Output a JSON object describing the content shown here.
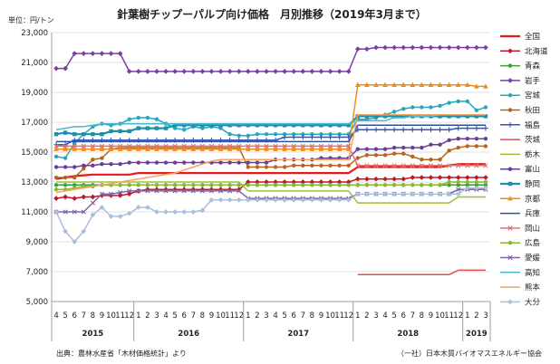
{
  "chart_data": {
    "type": "line",
    "title": "針葉樹チップーパルプ向け価格　月別推移（2019年3月まで）",
    "unit_label": "単位：円/トン",
    "source_note": "出典：農林水産省「木材価格統計」より",
    "credit": "（一社）日本木質バイオマスエネルギー協会",
    "ylim": [
      5000,
      23000
    ],
    "yticks": [
      "5,000",
      "7,000",
      "9,000",
      "11,000",
      "13,000",
      "15,000",
      "17,000",
      "19,000",
      "21,000",
      "23,000"
    ],
    "month_labels": [
      "4",
      "5",
      "6",
      "7",
      "8",
      "9",
      "10",
      "11",
      "12",
      "1",
      "2",
      "3",
      "4",
      "5",
      "6",
      "7",
      "8",
      "9",
      "10",
      "11",
      "12",
      "1",
      "2",
      "3",
      "4",
      "5",
      "6",
      "7",
      "8",
      "9",
      "10",
      "11",
      "12",
      "1",
      "2",
      "3",
      "4",
      "5",
      "6",
      "7",
      "8",
      "9",
      "10",
      "11",
      "12",
      "1",
      "2",
      "3"
    ],
    "years": [
      {
        "label": "2015",
        "start": 0,
        "end": 9
      },
      {
        "label": "2016",
        "start": 9,
        "end": 21
      },
      {
        "label": "2017",
        "start": 21,
        "end": 33
      },
      {
        "label": "2018",
        "start": 33,
        "end": 45
      },
      {
        "label": "2019",
        "start": 45,
        "end": 48
      }
    ],
    "series": [
      {
        "name": "全国",
        "color": "#e31a1c",
        "marker": "none",
        "width": 2.2,
        "values": [
          13200,
          13300,
          13400,
          13450,
          13500,
          13500,
          13500,
          13500,
          13500,
          13600,
          13600,
          13600,
          13600,
          13600,
          13600,
          13600,
          13600,
          13600,
          13600,
          13600,
          13600,
          13600,
          13600,
          13600,
          13600,
          13600,
          13600,
          13600,
          13600,
          13600,
          13600,
          13600,
          13600,
          14000,
          14000,
          14000,
          14000,
          14000,
          14000,
          14000,
          14000,
          14000,
          14000,
          14100,
          14200,
          14200,
          14200,
          14200
        ]
      },
      {
        "name": "北海道",
        "color": "#c0182a",
        "marker": "diamond",
        "width": 1.5,
        "values": [
          11900,
          12000,
          11900,
          12000,
          12000,
          12100,
          12100,
          12100,
          12200,
          12400,
          12500,
          12500,
          12500,
          12500,
          12500,
          12500,
          12500,
          12500,
          12500,
          12500,
          12500,
          13000,
          13000,
          13000,
          13000,
          13000,
          13000,
          13000,
          13000,
          13000,
          13000,
          13000,
          13000,
          13200,
          13200,
          13200,
          13200,
          13200,
          13200,
          13300,
          13300,
          13300,
          13300,
          13300,
          13300,
          13300,
          13300,
          13300
        ]
      },
      {
        "name": "青森",
        "color": "#3a9e3a",
        "marker": "circle",
        "width": 1.5,
        "values": [
          12800,
          12800,
          12800,
          12800,
          12800,
          12800,
          12800,
          12800,
          12800,
          12800,
          12800,
          12800,
          12800,
          12800,
          12800,
          12800,
          12800,
          12800,
          12800,
          12800,
          12800,
          12800,
          12800,
          12800,
          12800,
          12800,
          12800,
          12800,
          12800,
          12800,
          12800,
          12800,
          12800,
          12800,
          12800,
          12800,
          12800,
          12800,
          12800,
          12800,
          12800,
          12800,
          12800,
          12800,
          12800,
          12800,
          12800,
          12800
        ]
      },
      {
        "name": "岩手",
        "color": "#7b3fa0",
        "marker": "diamond",
        "width": 1.5,
        "values": [
          20600,
          20600,
          21600,
          21600,
          21600,
          21600,
          21600,
          21600,
          20400,
          20400,
          20400,
          20400,
          20400,
          20400,
          20400,
          20400,
          20400,
          20400,
          20400,
          20400,
          20400,
          20400,
          20400,
          20400,
          20400,
          20400,
          20400,
          20400,
          20400,
          20400,
          20400,
          20400,
          20400,
          21900,
          21900,
          22000,
          22000,
          22000,
          22000,
          22000,
          22000,
          22000,
          22000,
          22000,
          22000,
          22000,
          22000,
          22000
        ]
      },
      {
        "name": "宮城",
        "color": "#27a6bd",
        "marker": "circle",
        "width": 1.5,
        "values": [
          14700,
          14600,
          15600,
          16200,
          16700,
          16900,
          16800,
          16900,
          17200,
          17300,
          17300,
          17200,
          16900,
          16600,
          16500,
          16700,
          16600,
          16700,
          16600,
          16200,
          16100,
          16100,
          16200,
          16200,
          16200,
          16200,
          16200,
          16200,
          16200,
          16200,
          16200,
          16200,
          16200,
          17200,
          17200,
          17300,
          17500,
          17700,
          17900,
          18000,
          18000,
          18000,
          18100,
          18300,
          18400,
          18400,
          17800,
          18000
        ]
      },
      {
        "name": "秋田",
        "color": "#b5651d",
        "marker": "circle",
        "width": 1.5,
        "values": [
          13300,
          13300,
          13300,
          13900,
          14500,
          14600,
          15200,
          15300,
          15300,
          15300,
          15300,
          15300,
          15300,
          15300,
          15300,
          15300,
          15300,
          15300,
          15300,
          15300,
          15300,
          14000,
          14000,
          14000,
          14000,
          14000,
          14100,
          14100,
          14100,
          14100,
          14100,
          14100,
          14100,
          14600,
          14800,
          14800,
          14800,
          14900,
          14900,
          14700,
          14500,
          14500,
          14500,
          15100,
          15300,
          15400,
          15400,
          15400
        ]
      },
      {
        "name": "福島",
        "color": "#3355bb",
        "marker": "plus",
        "width": 1.5,
        "values": [
          15500,
          15500,
          15800,
          15800,
          15800,
          15800,
          15800,
          15800,
          15800,
          15800,
          15800,
          15800,
          15800,
          15800,
          15800,
          15800,
          15800,
          15800,
          15800,
          15800,
          15800,
          15800,
          15800,
          15800,
          15800,
          16000,
          16000,
          16000,
          16000,
          16000,
          16000,
          16000,
          16000,
          16500,
          16500,
          16500,
          16500,
          16500,
          16500,
          16500,
          16500,
          16500,
          16500,
          16500,
          16600,
          16600,
          16600,
          16600
        ]
      },
      {
        "name": "茨城",
        "color": "#d9534f",
        "marker": "none",
        "width": 1.5,
        "values": [
          null,
          null,
          null,
          null,
          null,
          null,
          null,
          null,
          null,
          null,
          null,
          null,
          null,
          null,
          null,
          null,
          null,
          null,
          null,
          null,
          null,
          null,
          null,
          null,
          null,
          null,
          null,
          null,
          null,
          null,
          null,
          null,
          null,
          6800,
          6800,
          6800,
          6800,
          6800,
          6800,
          6800,
          6800,
          6800,
          6800,
          6800,
          7100,
          7100,
          7100,
          7100
        ]
      },
      {
        "name": "栃木",
        "color": "#9cc13c",
        "marker": "none",
        "width": 1.5,
        "values": [
          13000,
          13000,
          13000,
          13000,
          13000,
          13000,
          13000,
          13000,
          13000,
          13000,
          13000,
          13000,
          13000,
          13000,
          13000,
          13000,
          13000,
          13000,
          13000,
          13000,
          13000,
          12400,
          12400,
          12400,
          12400,
          12400,
          12400,
          12400,
          12400,
          12400,
          12400,
          12400,
          12400,
          11600,
          11600,
          11600,
          11600,
          11600,
          11600,
          11600,
          11600,
          11600,
          11600,
          11600,
          12000,
          12000,
          12000,
          12000
        ]
      },
      {
        "name": "富山",
        "color": "#6a3d9a",
        "marker": "circle",
        "width": 1.5,
        "values": [
          14000,
          14000,
          14000,
          14100,
          14100,
          14200,
          14200,
          14200,
          14300,
          14300,
          14300,
          14300,
          14300,
          14300,
          14300,
          14300,
          14300,
          14300,
          14300,
          14300,
          14300,
          14300,
          14300,
          14300,
          14500,
          14500,
          14500,
          14500,
          14500,
          14600,
          14600,
          14600,
          14600,
          15200,
          15200,
          15200,
          15200,
          15300,
          15300,
          15300,
          15300,
          15500,
          15500,
          15800,
          15900,
          15900,
          15900,
          15900
        ]
      },
      {
        "name": "静岡",
        "color": "#1f8fa6",
        "marker": "square",
        "width": 2.2,
        "values": [
          16200,
          16300,
          16200,
          16200,
          16200,
          16200,
          16400,
          16400,
          16400,
          16600,
          16600,
          16600,
          16600,
          16800,
          16800,
          16800,
          16800,
          16800,
          16800,
          16800,
          16800,
          16800,
          16800,
          16800,
          16800,
          16800,
          16800,
          16800,
          16800,
          16800,
          16800,
          16800,
          16800,
          17400,
          17400,
          17400,
          17400,
          17400,
          17400,
          17400,
          17400,
          17400,
          17400,
          17400,
          17400,
          17400,
          17400,
          17400
        ]
      },
      {
        "name": "京都",
        "color": "#f08c1e",
        "marker": "triangle",
        "width": 1.5,
        "values": [
          15200,
          15200,
          15200,
          15200,
          15200,
          15200,
          15200,
          15200,
          15200,
          15200,
          15200,
          15200,
          15200,
          15200,
          15200,
          15200,
          15200,
          15200,
          15200,
          15200,
          15200,
          15200,
          15200,
          15200,
          15200,
          15200,
          15200,
          15200,
          15200,
          15200,
          15200,
          15200,
          15200,
          19500,
          19500,
          19500,
          19500,
          19500,
          19500,
          19500,
          19500,
          19500,
          19500,
          19500,
          19500,
          19500,
          19400,
          19400
        ]
      },
      {
        "name": "兵庫",
        "color": "#2f4f9f",
        "marker": "none",
        "width": 1.5,
        "values": [
          15700,
          15700,
          15700,
          15700,
          15700,
          15700,
          15700,
          15700,
          15700,
          15700,
          15700,
          15700,
          15700,
          15700,
          15700,
          15700,
          15700,
          15700,
          15700,
          15700,
          15700,
          15700,
          15700,
          15700,
          15700,
          15700,
          15700,
          15700,
          15700,
          15700,
          15700,
          15700,
          15700,
          16800,
          16800,
          16800,
          16800,
          16800,
          16800,
          16800,
          16800,
          16800,
          16800,
          16800,
          16800,
          16800,
          16800,
          16800
        ]
      },
      {
        "name": "岡山",
        "color": "#e07070",
        "marker": "cross",
        "width": 1.5,
        "values": [
          15400,
          15400,
          15400,
          15400,
          15400,
          15400,
          15400,
          15400,
          15400,
          15400,
          15400,
          15400,
          15400,
          15400,
          15400,
          15400,
          15400,
          15400,
          15400,
          15400,
          15400,
          15400,
          15400,
          15400,
          15400,
          15400,
          15400,
          15400,
          15400,
          15400,
          15400,
          15400,
          15400,
          14100,
          14100,
          14100,
          14100,
          14100,
          14100,
          14100,
          14100,
          14100,
          14100,
          14100,
          14100,
          14100,
          14100,
          14100
        ]
      },
      {
        "name": "広島",
        "color": "#8ab833",
        "marker": "circle",
        "width": 1.5,
        "values": [
          12500,
          12500,
          12600,
          12700,
          12700,
          12800,
          12800,
          12800,
          12800,
          12800,
          12800,
          12800,
          12800,
          12800,
          12800,
          12800,
          12800,
          12800,
          12800,
          12800,
          12800,
          12800,
          12800,
          12800,
          12800,
          12800,
          12800,
          12800,
          12800,
          12800,
          12800,
          12800,
          12800,
          12800,
          12800,
          12800,
          12800,
          12800,
          12800,
          12800,
          12800,
          12800,
          12800,
          13000,
          13000,
          13000,
          13000,
          13000
        ]
      },
      {
        "name": "愛媛",
        "color": "#8064a2",
        "marker": "cross",
        "width": 1.5,
        "values": [
          11000,
          11000,
          11000,
          11000,
          11600,
          12200,
          12200,
          12300,
          12400,
          12400,
          12400,
          12400,
          12400,
          12400,
          12400,
          12400,
          12400,
          12400,
          12400,
          12400,
          12400,
          11900,
          11900,
          11900,
          11900,
          11900,
          11900,
          11900,
          11900,
          11900,
          11900,
          11900,
          11900,
          12200,
          12200,
          12200,
          12200,
          12200,
          12200,
          12200,
          12200,
          12200,
          12200,
          12200,
          12500,
          12500,
          12500,
          12500
        ]
      },
      {
        "name": "高知",
        "color": "#4ab8d4",
        "marker": "none",
        "width": 1.5,
        "values": [
          16500,
          16600,
          16700,
          16700,
          16800,
          16900,
          16900,
          16900,
          16900,
          16900,
          16900,
          16900,
          16900,
          16900,
          16900,
          16900,
          16900,
          16900,
          16900,
          16900,
          16900,
          16900,
          16900,
          16900,
          16900,
          16900,
          16900,
          16900,
          16900,
          16900,
          16900,
          16900,
          16900,
          17100,
          17100,
          17100,
          17100,
          17300,
          17300,
          17400,
          17400,
          17400,
          17500,
          17500,
          17500,
          17500,
          17500,
          17500
        ]
      },
      {
        "name": "熊本",
        "color": "#f4a460",
        "marker": "none",
        "width": 1.5,
        "values": [
          12300,
          12400,
          12500,
          12600,
          12700,
          12800,
          12900,
          13000,
          13100,
          13200,
          13300,
          13400,
          13500,
          13600,
          13800,
          14000,
          14200,
          14400,
          14500,
          14500,
          14500,
          14500,
          14500,
          14500,
          14500,
          14500,
          14500,
          14500,
          14500,
          14500,
          14500,
          14500,
          14500,
          17500,
          17500,
          17500,
          17500,
          17500,
          17500,
          17500,
          17500,
          17500,
          17500,
          17500,
          17500,
          17500,
          17500,
          17500
        ]
      },
      {
        "name": "大分",
        "color": "#a9bfdc",
        "marker": "diamond",
        "width": 1.5,
        "values": [
          11000,
          9700,
          9000,
          9700,
          10800,
          11300,
          10700,
          10700,
          10900,
          11300,
          11300,
          11000,
          11000,
          11000,
          11000,
          11000,
          11100,
          11800,
          11800,
          11800,
          11800,
          11800,
          11800,
          11800,
          11800,
          11800,
          11800,
          11800,
          11800,
          11800,
          11800,
          11800,
          11800,
          12200,
          12200,
          12200,
          12200,
          12200,
          12200,
          12200,
          12200,
          12200,
          12200,
          12200,
          12200,
          12600,
          12600,
          12600
        ]
      }
    ]
  }
}
